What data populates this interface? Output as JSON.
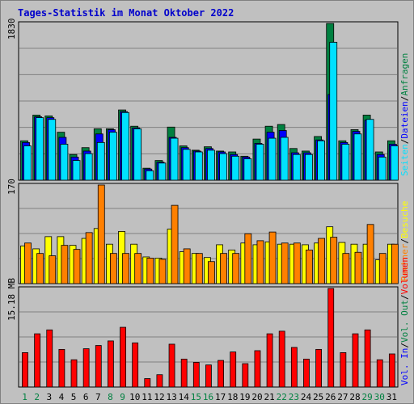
{
  "title": "Tages-Statistik im Monat Oktober 2022",
  "colors": {
    "background": "#c0c0c0",
    "title": "#0000cc",
    "anfragen": "#008040",
    "dateien": "#0000ff",
    "seiten": "#00e0ff",
    "besuche": "#ffff00",
    "rechner": "#ff8000",
    "vol_in": "#0000ff",
    "vol_out": "#008040",
    "volumen": "#ff0000",
    "weekend_day": "#008040",
    "weekday": "#000000"
  },
  "chart_data": [
    {
      "type": "bar",
      "ymax_label": "1830",
      "ylim": [
        0,
        1830
      ],
      "right_labels": [
        {
          "key": "anfragen",
          "text": "Anfragen"
        },
        {
          "key": "dateien",
          "text": "Dateien"
        },
        {
          "key": "seiten",
          "text": "Seiten"
        }
      ],
      "categories": [
        "1",
        "2",
        "3",
        "4",
        "5",
        "6",
        "7",
        "8",
        "9",
        "10",
        "11",
        "12",
        "13",
        "14",
        "15",
        "16",
        "17",
        "18",
        "19",
        "20",
        "21",
        "22",
        "23",
        "24",
        "25",
        "26",
        "27",
        "28",
        "29",
        "30",
        "31"
      ],
      "series": [
        {
          "name": "Anfragen",
          "values": [
            460,
            760,
            750,
            560,
            300,
            380,
            600,
            600,
            820,
            630,
            140,
            230,
            620,
            400,
            350,
            390,
            340,
            330,
            280,
            480,
            630,
            650,
            370,
            340,
            510,
            1830,
            460,
            590,
            760,
            330,
            460
          ]
        },
        {
          "name": "Dateien",
          "values": [
            440,
            740,
            730,
            500,
            270,
            340,
            540,
            590,
            800,
            610,
            130,
            210,
            500,
            380,
            340,
            370,
            330,
            300,
            270,
            430,
            560,
            580,
            320,
            320,
            470,
            1000,
            440,
            570,
            700,
            300,
            420
          ]
        },
        {
          "name": "Seiten",
          "values": [
            400,
            730,
            710,
            420,
            230,
            310,
            440,
            560,
            790,
            600,
            110,
            200,
            490,
            360,
            330,
            350,
            310,
            280,
            250,
            420,
            490,
            500,
            300,
            300,
            460,
            1610,
            420,
            540,
            710,
            270,
            400
          ]
        }
      ]
    },
    {
      "type": "bar",
      "ymax_label": "170",
      "ylim": [
        0,
        170
      ],
      "right_labels": [
        {
          "key": "besuche",
          "text": "Besuche"
        },
        {
          "key": "rechner",
          "text": "Rechner"
        }
      ],
      "categories": [
        "1",
        "2",
        "3",
        "4",
        "5",
        "6",
        "7",
        "8",
        "9",
        "10",
        "11",
        "12",
        "13",
        "14",
        "15",
        "16",
        "17",
        "18",
        "19",
        "20",
        "21",
        "22",
        "23",
        "24",
        "25",
        "26",
        "27",
        "28",
        "29",
        "30",
        "31"
      ],
      "series": [
        {
          "name": "Besuche",
          "values": [
            65,
            60,
            81,
            81,
            66,
            78,
            95,
            68,
            90,
            68,
            46,
            44,
            94,
            55,
            52,
            45,
            67,
            58,
            70,
            67,
            72,
            68,
            68,
            67,
            70,
            98,
            71,
            68,
            68,
            41,
            68
          ]
        },
        {
          "name": "Rechner",
          "values": [
            70,
            52,
            48,
            66,
            59,
            88,
            170,
            52,
            52,
            52,
            44,
            42,
            135,
            60,
            52,
            38,
            52,
            52,
            86,
            74,
            89,
            70,
            70,
            58,
            78,
            80,
            52,
            54,
            102,
            52,
            68
          ]
        }
      ]
    },
    {
      "type": "bar",
      "ymax_label": "15.18 MB",
      "ylim": [
        0,
        15.18
      ],
      "right_labels": [
        {
          "key": "volumen",
          "text": "Volumen"
        },
        {
          "key": "vol_out",
          "text": "Vol. Out"
        },
        {
          "key": "vol_in",
          "text": "Vol. In"
        }
      ],
      "categories": [
        "1",
        "2",
        "3",
        "4",
        "5",
        "6",
        "7",
        "8",
        "9",
        "10",
        "11",
        "12",
        "13",
        "14",
        "15",
        "16",
        "17",
        "18",
        "19",
        "20",
        "21",
        "22",
        "23",
        "24",
        "25",
        "26",
        "27",
        "28",
        "29",
        "30",
        "31"
      ],
      "series": [
        {
          "name": "Volumen",
          "values": [
            5.3,
            8.2,
            8.8,
            5.8,
            4.2,
            5.9,
            6.4,
            7.1,
            9.2,
            6.8,
            1.3,
            1.9,
            6.6,
            4.3,
            3.8,
            3.4,
            4.1,
            5.4,
            3.6,
            5.6,
            8.2,
            8.6,
            6.1,
            4.3,
            5.8,
            15.18,
            5.3,
            8.2,
            8.8,
            4.2,
            5.1
          ]
        }
      ]
    }
  ],
  "day_labels": [
    {
      "text": "1",
      "weekend": true
    },
    {
      "text": "2",
      "weekend": true
    },
    {
      "text": "3",
      "weekend": false
    },
    {
      "text": "4",
      "weekend": false
    },
    {
      "text": "5",
      "weekend": false
    },
    {
      "text": "6",
      "weekend": false
    },
    {
      "text": "7",
      "weekend": false
    },
    {
      "text": "8",
      "weekend": true
    },
    {
      "text": "9",
      "weekend": true
    },
    {
      "text": "10",
      "weekend": false
    },
    {
      "text": "11",
      "weekend": false
    },
    {
      "text": "12",
      "weekend": false
    },
    {
      "text": "13",
      "weekend": false
    },
    {
      "text": "14",
      "weekend": false
    },
    {
      "text": "15",
      "weekend": true
    },
    {
      "text": "16",
      "weekend": true
    },
    {
      "text": "17",
      "weekend": false
    },
    {
      "text": "18",
      "weekend": false
    },
    {
      "text": "19",
      "weekend": false
    },
    {
      "text": "20",
      "weekend": false
    },
    {
      "text": "21",
      "weekend": false
    },
    {
      "text": "22",
      "weekend": true
    },
    {
      "text": "23",
      "weekend": true
    },
    {
      "text": "24",
      "weekend": false
    },
    {
      "text": "25",
      "weekend": false
    },
    {
      "text": "26",
      "weekend": false
    },
    {
      "text": "27",
      "weekend": false
    },
    {
      "text": "28",
      "weekend": false
    },
    {
      "text": "29",
      "weekend": true
    },
    {
      "text": "30",
      "weekend": true
    },
    {
      "text": "31",
      "weekend": false
    }
  ]
}
